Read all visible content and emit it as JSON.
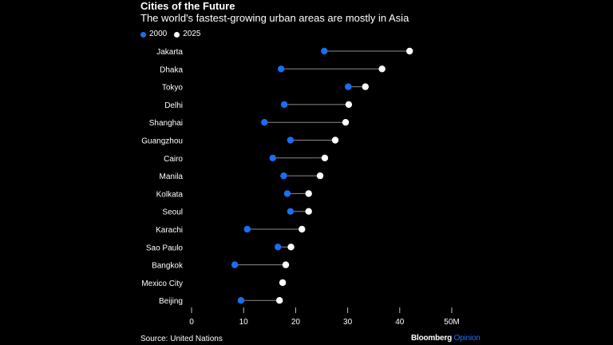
{
  "colors": {
    "background": "#000000",
    "series_2000": "#1a6ef5",
    "series_2025": "#ffffff",
    "connector": "#8c8c8c",
    "text": "#ffffff",
    "brand_accent": "#1a6ef5"
  },
  "header": {
    "title": "Cities of the Future",
    "subtitle": "The world's fastest-growing urban areas are mostly in Asia"
  },
  "legend": [
    {
      "label": "2000",
      "color": "#1a6ef5"
    },
    {
      "label": "2025",
      "color": "#ffffff"
    }
  ],
  "footer": {
    "source": "Source: United Nations",
    "brand": "Bloomberg",
    "brand_suffix": "Opinion"
  },
  "chart_data": {
    "type": "dumbbell",
    "title": "Cities of the Future",
    "subtitle": "The world's fastest-growing urban areas are mostly in Asia",
    "xlabel": "",
    "ylabel": "",
    "xlim": [
      0,
      50
    ],
    "x_ticks": [
      0,
      10,
      20,
      30,
      40,
      50
    ],
    "x_tick_labels": [
      "0",
      "10",
      "20",
      "30",
      "40",
      "50M"
    ],
    "grid": false,
    "legend_position": "top-left",
    "categories": [
      "Jakarta",
      "Dhaka",
      "Tokyo",
      "Delhi",
      "Shanghai",
      "Guangzhou",
      "Cairo",
      "Manila",
      "Kolkata",
      "Seoul",
      "Karachi",
      "Sao Paulo",
      "Bangkok",
      "Mexico City",
      "Beijing"
    ],
    "series": [
      {
        "name": "2000",
        "values": [
          25.5,
          17.2,
          30.1,
          17.8,
          14.0,
          19.0,
          15.6,
          17.7,
          18.4,
          19.0,
          10.7,
          16.6,
          8.3,
          17.5,
          9.5
        ]
      },
      {
        "name": "2025",
        "values": [
          41.9,
          36.6,
          33.4,
          30.2,
          29.6,
          27.6,
          25.6,
          24.7,
          22.5,
          22.5,
          21.2,
          19.1,
          18.1,
          17.5,
          16.9
        ]
      }
    ]
  }
}
